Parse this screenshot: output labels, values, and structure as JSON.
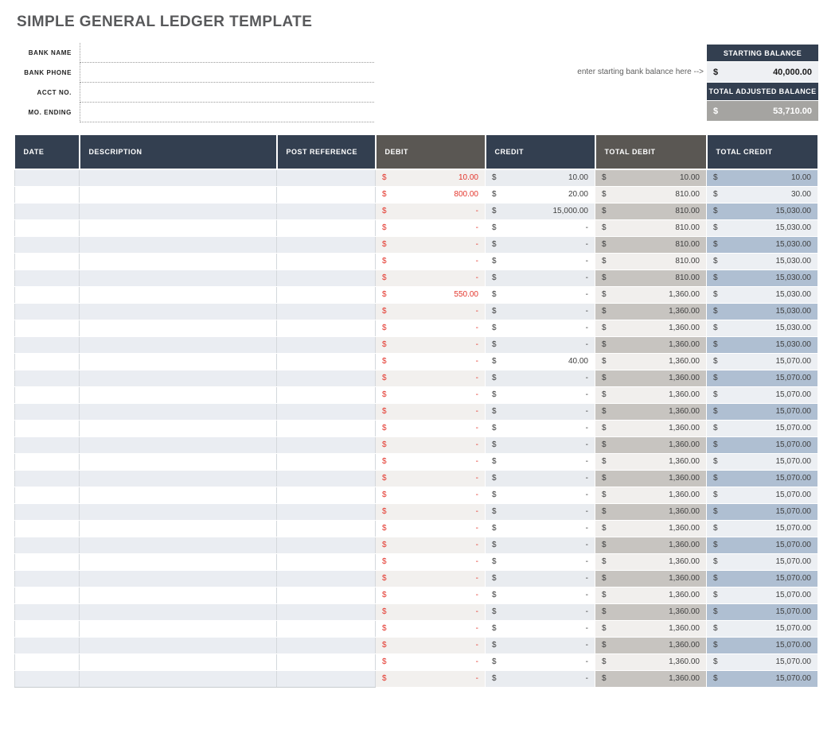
{
  "page_title": "SIMPLE GENERAL LEDGER TEMPLATE",
  "bank_info": {
    "fields": [
      {
        "label": "BANK NAME",
        "value": ""
      },
      {
        "label": "BANK PHONE",
        "value": ""
      },
      {
        "label": "ACCT NO.",
        "value": ""
      },
      {
        "label": "MO. ENDING",
        "value": ""
      }
    ]
  },
  "balances": {
    "hint": "enter starting bank balance here -->",
    "starting_label": "STARTING BALANCE",
    "starting_currency": "$",
    "starting_value": "40,000.00",
    "adjusted_label": "TOTAL ADJUSTED BALANCE",
    "adjusted_currency": "$",
    "adjusted_value": "53,710.00"
  },
  "ledger": {
    "columns": [
      "DATE",
      "DESCRIPTION",
      "POST REFERENCE",
      "DEBIT",
      "CREDIT",
      "TOTAL DEBIT",
      "TOTAL CREDIT"
    ],
    "currency_symbol": "$",
    "rows": [
      [
        "",
        "",
        "",
        "10.00",
        "10.00",
        "10.00",
        "10.00"
      ],
      [
        "",
        "",
        "",
        "800.00",
        "20.00",
        "810.00",
        "30.00"
      ],
      [
        "",
        "",
        "",
        "-",
        "15,000.00",
        "810.00",
        "15,030.00"
      ],
      [
        "",
        "",
        "",
        "-",
        "-",
        "810.00",
        "15,030.00"
      ],
      [
        "",
        "",
        "",
        "-",
        "-",
        "810.00",
        "15,030.00"
      ],
      [
        "",
        "",
        "",
        "-",
        "-",
        "810.00",
        "15,030.00"
      ],
      [
        "",
        "",
        "",
        "-",
        "-",
        "810.00",
        "15,030.00"
      ],
      [
        "",
        "",
        "",
        "550.00",
        "-",
        "1,360.00",
        "15,030.00"
      ],
      [
        "",
        "",
        "",
        "-",
        "-",
        "1,360.00",
        "15,030.00"
      ],
      [
        "",
        "",
        "",
        "-",
        "-",
        "1,360.00",
        "15,030.00"
      ],
      [
        "",
        "",
        "",
        "-",
        "-",
        "1,360.00",
        "15,030.00"
      ],
      [
        "",
        "",
        "",
        "-",
        "40.00",
        "1,360.00",
        "15,070.00"
      ],
      [
        "",
        "",
        "",
        "-",
        "-",
        "1,360.00",
        "15,070.00"
      ],
      [
        "",
        "",
        "",
        "-",
        "-",
        "1,360.00",
        "15,070.00"
      ],
      [
        "",
        "",
        "",
        "-",
        "-",
        "1,360.00",
        "15,070.00"
      ],
      [
        "",
        "",
        "",
        "-",
        "-",
        "1,360.00",
        "15,070.00"
      ],
      [
        "",
        "",
        "",
        "-",
        "-",
        "1,360.00",
        "15,070.00"
      ],
      [
        "",
        "",
        "",
        "-",
        "-",
        "1,360.00",
        "15,070.00"
      ],
      [
        "",
        "",
        "",
        "-",
        "-",
        "1,360.00",
        "15,070.00"
      ],
      [
        "",
        "",
        "",
        "-",
        "-",
        "1,360.00",
        "15,070.00"
      ],
      [
        "",
        "",
        "",
        "-",
        "-",
        "1,360.00",
        "15,070.00"
      ],
      [
        "",
        "",
        "",
        "-",
        "-",
        "1,360.00",
        "15,070.00"
      ],
      [
        "",
        "",
        "",
        "-",
        "-",
        "1,360.00",
        "15,070.00"
      ],
      [
        "",
        "",
        "",
        "-",
        "-",
        "1,360.00",
        "15,070.00"
      ],
      [
        "",
        "",
        "",
        "-",
        "-",
        "1,360.00",
        "15,070.00"
      ],
      [
        "",
        "",
        "",
        "-",
        "-",
        "1,360.00",
        "15,070.00"
      ],
      [
        "",
        "",
        "",
        "-",
        "-",
        "1,360.00",
        "15,070.00"
      ],
      [
        "",
        "",
        "",
        "-",
        "-",
        "1,360.00",
        "15,070.00"
      ],
      [
        "",
        "",
        "",
        "-",
        "-",
        "1,360.00",
        "15,070.00"
      ],
      [
        "",
        "",
        "",
        "-",
        "-",
        "1,360.00",
        "15,070.00"
      ],
      [
        "",
        "",
        "",
        "-",
        "-",
        "1,360.00",
        "15,070.00"
      ]
    ]
  },
  "colors": {
    "navy": "#333F50",
    "header_gray": "#5A5753",
    "debit_red": "#E3352B",
    "title_gray": "#58595B",
    "hint_gray": "#5F5F5F",
    "band_left": "#EAEDF2",
    "band_debit": "#F2F0EE",
    "band_credit": "#E9ECF0",
    "band_total_debit": "#C7C4C0",
    "band_total_debit_light": "#F1EFED",
    "band_total_credit": "#AFBFD2",
    "band_total_credit_light": "#ECEFF3",
    "starting_value_bg": "#EEF0F3",
    "adjusted_value_bg": "#A5A4A1"
  }
}
